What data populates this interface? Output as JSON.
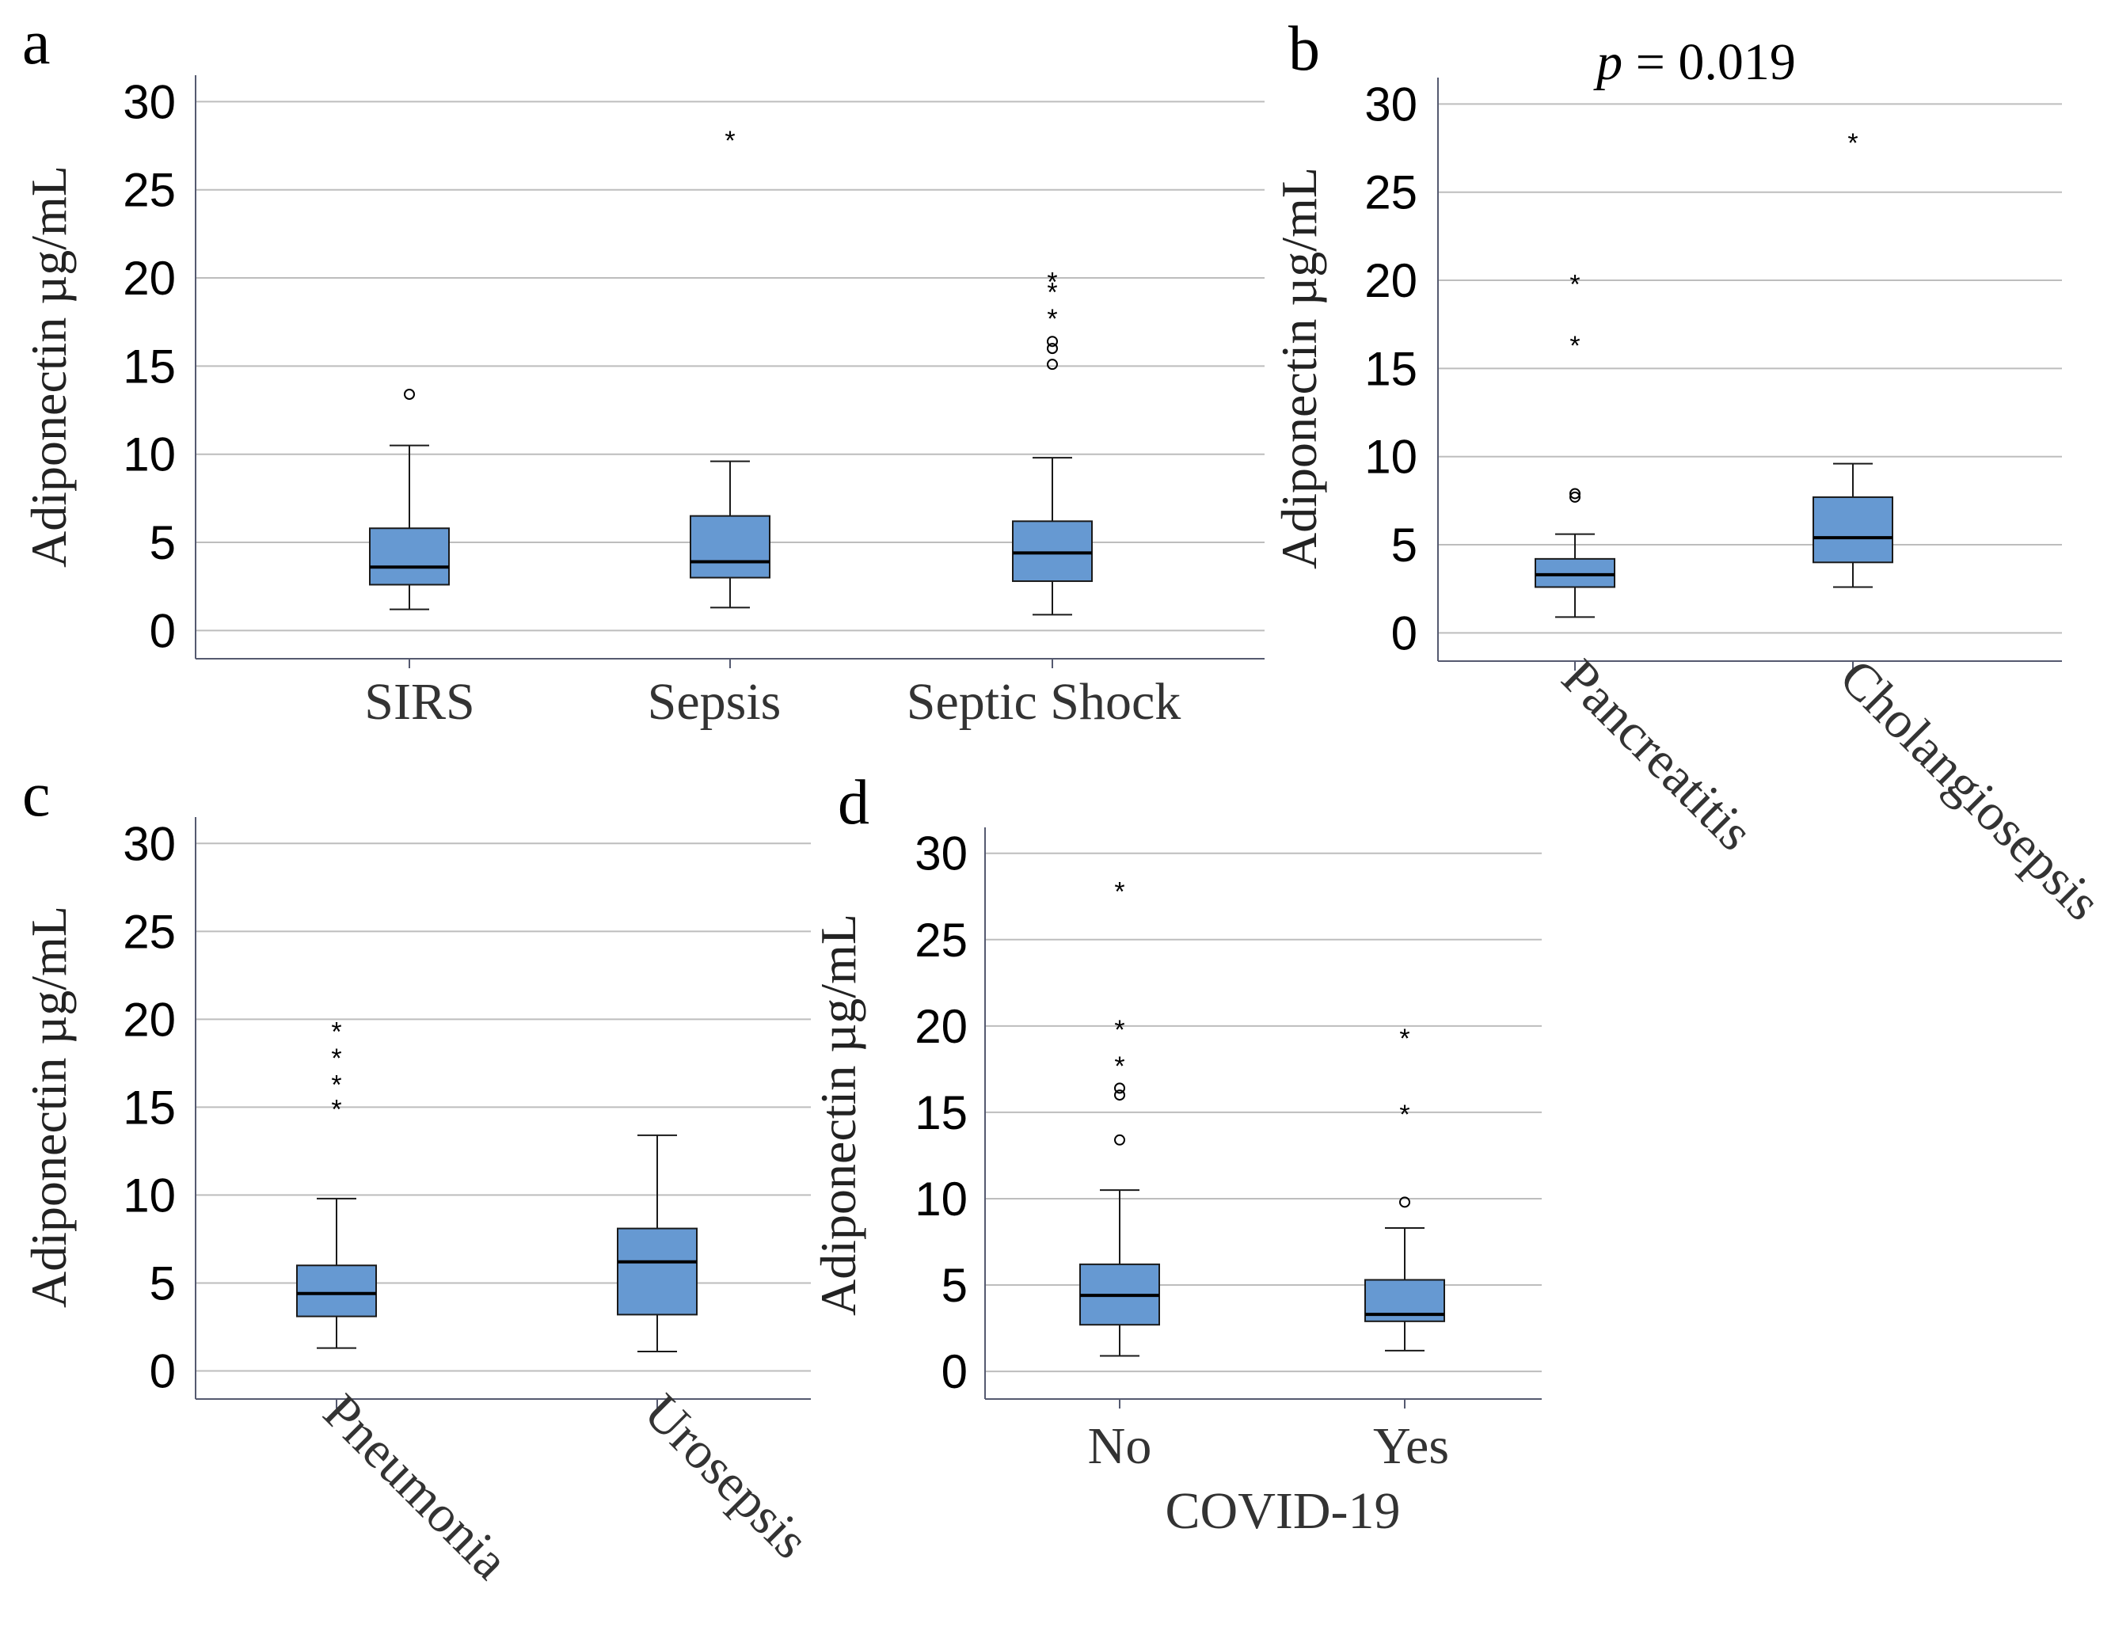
{
  "chart_data": [
    {
      "panel": "a",
      "type": "box",
      "ylabel": "Adiponectin µg/mL",
      "xlabel": "",
      "ylim": [
        -1.6,
        31.5
      ],
      "yticks": [
        0,
        5,
        10,
        15,
        20,
        25,
        30
      ],
      "grid": true,
      "annotation": "",
      "categories": [
        "SIRS",
        "Sepsis",
        "Septic Shock"
      ],
      "boxes": [
        {
          "min": 1.2,
          "q1": 2.6,
          "median": 3.6,
          "q3": 5.8,
          "max": 10.5,
          "outliers": [
            13.4
          ],
          "extremes": []
        },
        {
          "min": 1.3,
          "q1": 3.0,
          "median": 3.9,
          "q3": 6.5,
          "max": 9.6,
          "outliers": [],
          "extremes": [
            27.9
          ]
        },
        {
          "min": 0.9,
          "q1": 2.8,
          "median": 4.4,
          "q3": 6.2,
          "max": 9.8,
          "outliers": [
            15.1,
            16.0,
            16.4
          ],
          "extremes": [
            17.8,
            19.3,
            19.9
          ]
        }
      ]
    },
    {
      "panel": "b",
      "type": "box",
      "ylabel": "Adiponectin µg/mL",
      "xlabel": "",
      "ylim": [
        -1.6,
        31.5
      ],
      "yticks": [
        0,
        5,
        10,
        15,
        20,
        25,
        30
      ],
      "grid": true,
      "annotation": "= 0.019",
      "annotation_symbol": "p",
      "categories": [
        "Pancreatitis",
        "Cholangiosepsis"
      ],
      "boxes": [
        {
          "min": 0.9,
          "q1": 2.6,
          "median": 3.3,
          "q3": 4.2,
          "max": 5.6,
          "outliers": [
            7.7,
            7.9
          ],
          "extremes": [
            16.4,
            19.9
          ]
        },
        {
          "min": 2.6,
          "q1": 4.0,
          "median": 5.4,
          "q3": 7.7,
          "max": 9.6,
          "outliers": [],
          "extremes": [
            27.9
          ]
        }
      ]
    },
    {
      "panel": "c",
      "type": "box",
      "ylabel": "Adiponectin µg/mL",
      "xlabel": "",
      "ylim": [
        -1.6,
        31.5
      ],
      "yticks": [
        0,
        5,
        10,
        15,
        20,
        25,
        30
      ],
      "grid": true,
      "annotation": "",
      "categories": [
        "Pneumonia",
        "Urosepsis"
      ],
      "boxes": [
        {
          "min": 1.3,
          "q1": 3.1,
          "median": 4.4,
          "q3": 6.0,
          "max": 9.8,
          "outliers": [],
          "extremes": [
            15.0,
            16.4,
            17.9,
            19.4
          ]
        },
        {
          "min": 1.1,
          "q1": 3.2,
          "median": 6.2,
          "q3": 8.1,
          "max": 13.4,
          "outliers": [],
          "extremes": []
        }
      ]
    },
    {
      "panel": "d",
      "type": "box",
      "ylabel": "Adiponectin µg/mL",
      "xlabel": "COVID-19",
      "ylim": [
        -1.6,
        31.5
      ],
      "yticks": [
        0,
        5,
        10,
        15,
        20,
        25,
        30
      ],
      "grid": true,
      "annotation": "",
      "categories": [
        "No",
        "Yes"
      ],
      "boxes": [
        {
          "min": 0.9,
          "q1": 2.7,
          "median": 4.4,
          "q3": 6.2,
          "max": 10.5,
          "outliers": [
            13.4,
            16.0,
            16.4
          ],
          "extremes": [
            17.8,
            19.9,
            27.9
          ]
        },
        {
          "min": 1.2,
          "q1": 2.9,
          "median": 3.3,
          "q3": 5.3,
          "max": 8.3,
          "outliers": [
            9.8
          ],
          "extremes": [
            15.0,
            19.4
          ]
        }
      ]
    }
  ],
  "colors": {
    "box_fill": "#6699d2",
    "box_stroke": "#1a1a1a",
    "grid": "#bdbdbd",
    "axis": "#555a70"
  }
}
